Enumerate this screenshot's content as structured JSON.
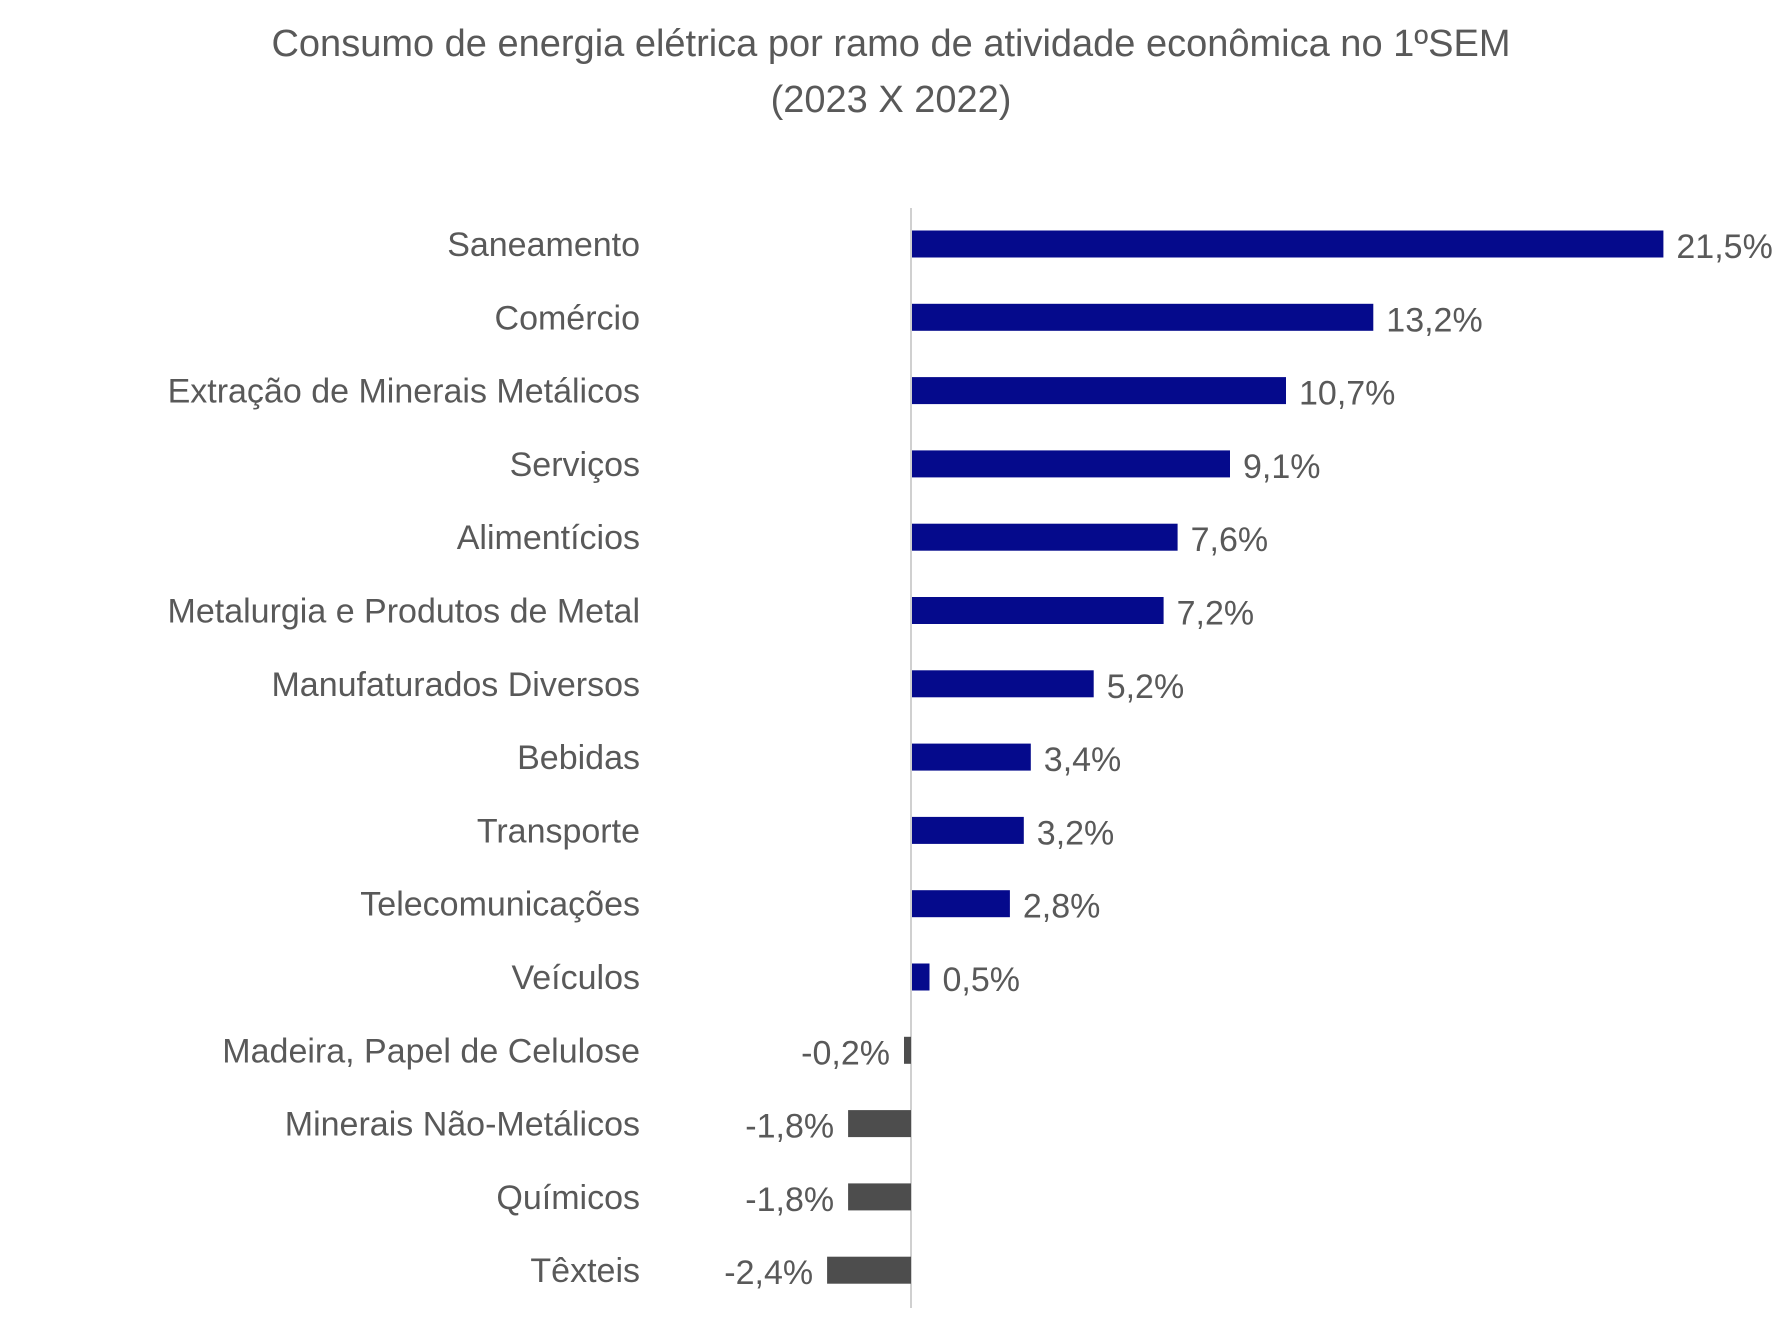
{
  "chart_data": {
    "type": "bar",
    "orientation": "horizontal",
    "title": "Consumo de energia elétrica por ramo de atividade econômica no 1ºSEM",
    "subtitle": "(2023 X 2022)",
    "categories": [
      "Saneamento",
      "Comércio",
      "Extração de Minerais Metálicos",
      "Serviços",
      "Alimentícios",
      "Metalurgia e Produtos de Metal",
      "Manufaturados Diversos",
      "Bebidas",
      "Transporte",
      "Telecomunicações",
      "Veículos",
      "Madeira, Papel de Celulose",
      "Minerais Não-Metálicos",
      "Químicos",
      "Têxteis"
    ],
    "values": [
      21.5,
      13.2,
      10.7,
      9.1,
      7.6,
      7.2,
      5.2,
      3.4,
      3.2,
      2.8,
      0.5,
      -0.2,
      -1.8,
      -1.8,
      -2.4
    ],
    "value_labels": [
      "21,5%",
      "13,2%",
      "10,7%",
      "9,1%",
      "7,6%",
      "7,2%",
      "5,2%",
      "3,4%",
      "3,2%",
      "2,8%",
      "0,5%",
      "-0,2%",
      "-1,8%",
      "-1,8%",
      "-2,4%"
    ],
    "unit": "%",
    "xlabel": "",
    "ylabel": "",
    "xlim": [
      -2.4,
      21.5
    ],
    "grid": false,
    "legend": "none",
    "colors": {
      "positive": "#050A8C",
      "negative": "#4D4D4D",
      "axis": "#D0D0D0",
      "text": "#595959"
    }
  }
}
